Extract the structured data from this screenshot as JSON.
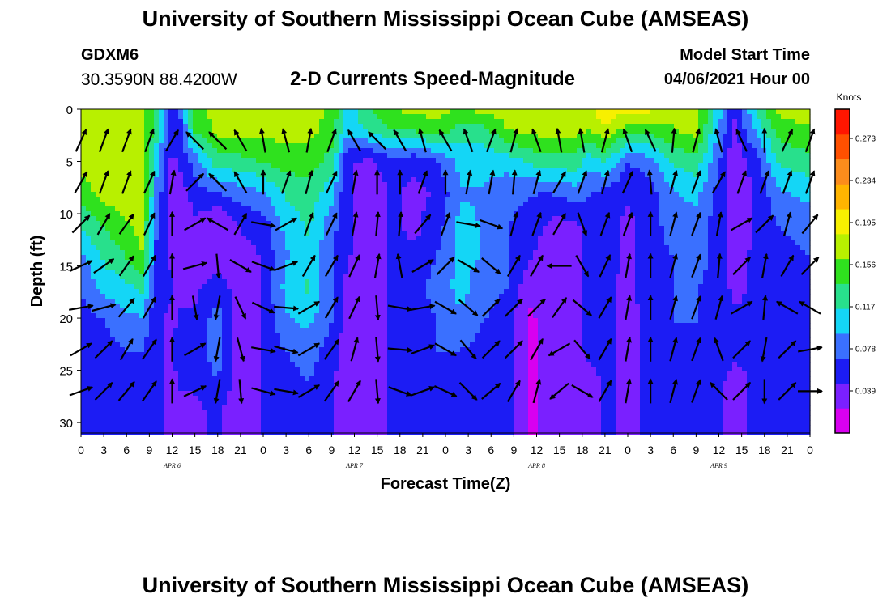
{
  "page": {
    "title_top": "University of Southern Mississippi Ocean Cube (AMSEAS)",
    "title_bottom": "University of Southern Mississippi Ocean Cube (AMSEAS)",
    "station_id": "GDXM6",
    "station_coords": "30.3590N  88.4200W",
    "subtitle": "2-D Currents Speed-Magnitude",
    "model_start_label": "Model Start Time",
    "model_start_value": "04/06/2021 Hour 00"
  },
  "chart_data": {
    "type": "heatmap",
    "title": "2-D Currents Speed-Magnitude",
    "xlabel": "Forecast Time(Z)",
    "ylabel": "Depth (ft)",
    "x_range_hours": [
      0,
      96
    ],
    "y_range_ft": [
      0,
      31
    ],
    "y_ticks": [
      0,
      5,
      10,
      15,
      20,
      25,
      30
    ],
    "x_tick_step_hours": 3,
    "x_tick_labels": [
      "0",
      "3",
      "6",
      "9",
      "12",
      "15",
      "18",
      "21",
      "0",
      "3",
      "6",
      "9",
      "12",
      "15",
      "18",
      "21",
      "0",
      "3",
      "6",
      "9",
      "12",
      "15",
      "18",
      "21",
      "0",
      "3",
      "6",
      "9",
      "12",
      "15",
      "18",
      "21",
      "0"
    ],
    "date_labels": [
      {
        "hour": 12,
        "text": "APR 6"
      },
      {
        "hour": 36,
        "text": "APR 7"
      },
      {
        "hour": 60,
        "text": "APR 8"
      },
      {
        "hour": 84,
        "text": "APR 9"
      }
    ],
    "colorbar": {
      "title": "Knots",
      "ticks": [
        0.039,
        0.078,
        0.117,
        0.156,
        0.195,
        0.234,
        0.273
      ],
      "range": [
        0,
        0.3
      ],
      "colors": [
        "#d800f0",
        "#7a20ff",
        "#1c1cf4",
        "#3a70ff",
        "#14d6f6",
        "#28e08c",
        "#2fe11e",
        "#b8f000",
        "#f7f000",
        "#ffb400",
        "#fb8c1c",
        "#ff5000",
        "#ff1600"
      ]
    },
    "speed_profiles": {
      "depths_ft": [
        0,
        2,
        5,
        8,
        11,
        14,
        17,
        20,
        23,
        26,
        29,
        31
      ],
      "columns": [
        {
          "hour": 0,
          "speeds": [
            0.16,
            0.17,
            0.17,
            0.15,
            0.12,
            0.09,
            0.07,
            0.06,
            0.05,
            0.05,
            0.05,
            0.05
          ]
        },
        {
          "hour": 3,
          "speeds": [
            0.17,
            0.18,
            0.18,
            0.17,
            0.14,
            0.12,
            0.1,
            0.07,
            0.06,
            0.05,
            0.05,
            0.05
          ]
        },
        {
          "hour": 6,
          "speeds": [
            0.17,
            0.18,
            0.18,
            0.18,
            0.16,
            0.14,
            0.11,
            0.09,
            0.07,
            0.06,
            0.06,
            0.06
          ]
        },
        {
          "hour": 8,
          "speeds": [
            0.17,
            0.18,
            0.18,
            0.18,
            0.17,
            0.16,
            0.12,
            0.09,
            0.07,
            0.06,
            0.06,
            0.06
          ]
        },
        {
          "hour": 10,
          "speeds": [
            0.13,
            0.12,
            0.1,
            0.08,
            0.07,
            0.06,
            0.06,
            0.05,
            0.05,
            0.05,
            0.05,
            0.05
          ]
        },
        {
          "hour": 12,
          "speeds": [
            0.06,
            0.05,
            0.04,
            0.04,
            0.04,
            0.04,
            0.05,
            0.04,
            0.04,
            0.04,
            0.04,
            0.04
          ]
        },
        {
          "hour": 13,
          "speeds": [
            0.07,
            0.06,
            0.05,
            0.03,
            0.03,
            0.03,
            0.04,
            0.05,
            0.06,
            0.05,
            0.04,
            0.03
          ]
        },
        {
          "hour": 15,
          "speeds": [
            0.15,
            0.14,
            0.08,
            0.06,
            0.04,
            0.03,
            0.04,
            0.05,
            0.06,
            0.05,
            0.04,
            0.04
          ]
        },
        {
          "hour": 18,
          "speeds": [
            0.17,
            0.17,
            0.13,
            0.07,
            0.02,
            0.03,
            0.06,
            0.08,
            0.08,
            0.07,
            0.05,
            0.05
          ]
        },
        {
          "hour": 21,
          "speeds": [
            0.17,
            0.17,
            0.13,
            0.08,
            0.05,
            0.03,
            0.03,
            0.03,
            0.03,
            0.03,
            0.03,
            0.03
          ]
        },
        {
          "hour": 24,
          "speeds": [
            0.17,
            0.17,
            0.14,
            0.09,
            0.06,
            0.05,
            0.05,
            0.05,
            0.05,
            0.05,
            0.05,
            0.05
          ]
        },
        {
          "hour": 27,
          "speeds": [
            0.17,
            0.17,
            0.15,
            0.12,
            0.1,
            0.09,
            0.1,
            0.09,
            0.07,
            0.06,
            0.06,
            0.06
          ]
        },
        {
          "hour": 30,
          "speeds": [
            0.17,
            0.17,
            0.15,
            0.13,
            0.12,
            0.11,
            0.12,
            0.1,
            0.08,
            0.07,
            0.06,
            0.06
          ]
        },
        {
          "hour": 33,
          "speeds": [
            0.16,
            0.15,
            0.13,
            0.1,
            0.08,
            0.07,
            0.07,
            0.07,
            0.06,
            0.05,
            0.05,
            0.05
          ]
        },
        {
          "hour": 35,
          "speeds": [
            0.1,
            0.1,
            0.05,
            0.05,
            0.05,
            0.05,
            0.04,
            0.04,
            0.03,
            0.03,
            0.03,
            0.03
          ]
        },
        {
          "hour": 38,
          "speeds": [
            0.14,
            0.12,
            0.04,
            0.03,
            0.03,
            0.03,
            0.03,
            0.03,
            0.03,
            0.03,
            0.03,
            0.03
          ]
        },
        {
          "hour": 41,
          "speeds": [
            0.16,
            0.14,
            0.06,
            0.05,
            0.05,
            0.05,
            0.05,
            0.05,
            0.05,
            0.05,
            0.05,
            0.05
          ]
        },
        {
          "hour": 44,
          "speeds": [
            0.17,
            0.14,
            0.05,
            0.04,
            0.04,
            0.05,
            0.06,
            0.06,
            0.06,
            0.06,
            0.06,
            0.06
          ]
        },
        {
          "hour": 47,
          "speeds": [
            0.17,
            0.15,
            0.07,
            0.05,
            0.06,
            0.07,
            0.08,
            0.07,
            0.07,
            0.06,
            0.06,
            0.06
          ]
        },
        {
          "hour": 50,
          "speeds": [
            0.16,
            0.13,
            0.1,
            0.09,
            0.1,
            0.1,
            0.1,
            0.09,
            0.07,
            0.06,
            0.06,
            0.06
          ]
        },
        {
          "hour": 53,
          "speeds": [
            0.17,
            0.13,
            0.1,
            0.09,
            0.09,
            0.09,
            0.08,
            0.07,
            0.06,
            0.06,
            0.06,
            0.06
          ]
        },
        {
          "hour": 56,
          "speeds": [
            0.17,
            0.16,
            0.1,
            0.08,
            0.07,
            0.07,
            0.07,
            0.06,
            0.06,
            0.06,
            0.06,
            0.06
          ]
        },
        {
          "hour": 59,
          "speeds": [
            0.17,
            0.17,
            0.12,
            0.07,
            0.06,
            0.05,
            0.03,
            0.02,
            0.02,
            0.02,
            0.02,
            0.02
          ]
        },
        {
          "hour": 62,
          "speeds": [
            0.18,
            0.17,
            0.13,
            0.07,
            0.04,
            0.03,
            0.03,
            0.03,
            0.03,
            0.03,
            0.03,
            0.03
          ]
        },
        {
          "hour": 65,
          "speeds": [
            0.18,
            0.17,
            0.13,
            0.08,
            0.04,
            0.03,
            0.04,
            0.04,
            0.04,
            0.04,
            0.04,
            0.04
          ]
        },
        {
          "hour": 67,
          "speeds": [
            0.18,
            0.16,
            0.1,
            0.07,
            0.06,
            0.06,
            0.06,
            0.05,
            0.05,
            0.04,
            0.04,
            0.04
          ]
        },
        {
          "hour": 69,
          "speeds": [
            0.2,
            0.18,
            0.12,
            0.06,
            0.06,
            0.06,
            0.05,
            0.05,
            0.05,
            0.05,
            0.05,
            0.05
          ]
        },
        {
          "hour": 72,
          "speeds": [
            0.19,
            0.15,
            0.07,
            0.05,
            0.04,
            0.04,
            0.04,
            0.04,
            0.04,
            0.04,
            0.04,
            0.04
          ]
        },
        {
          "hour": 75,
          "speeds": [
            0.19,
            0.15,
            0.08,
            0.06,
            0.06,
            0.06,
            0.06,
            0.05,
            0.05,
            0.05,
            0.05,
            0.05
          ]
        },
        {
          "hour": 78,
          "speeds": [
            0.17,
            0.16,
            0.12,
            0.09,
            0.08,
            0.07,
            0.07,
            0.07,
            0.06,
            0.06,
            0.06,
            0.06
          ]
        },
        {
          "hour": 81,
          "speeds": [
            0.17,
            0.17,
            0.13,
            0.1,
            0.08,
            0.08,
            0.07,
            0.07,
            0.06,
            0.06,
            0.06,
            0.06
          ]
        },
        {
          "hour": 84,
          "speeds": [
            0.1,
            0.09,
            0.07,
            0.06,
            0.06,
            0.06,
            0.06,
            0.06,
            0.06,
            0.05,
            0.05,
            0.05
          ]
        },
        {
          "hour": 86,
          "speeds": [
            0.05,
            0.04,
            0.03,
            0.03,
            0.03,
            0.04,
            0.04,
            0.05,
            0.05,
            0.04,
            0.04,
            0.04
          ]
        },
        {
          "hour": 89,
          "speeds": [
            0.12,
            0.1,
            0.06,
            0.05,
            0.05,
            0.05,
            0.05,
            0.05,
            0.05,
            0.05,
            0.05,
            0.05
          ]
        },
        {
          "hour": 92,
          "speeds": [
            0.17,
            0.15,
            0.12,
            0.09,
            0.07,
            0.06,
            0.06,
            0.06,
            0.06,
            0.06,
            0.06,
            0.06
          ]
        },
        {
          "hour": 96,
          "speeds": [
            0.17,
            0.16,
            0.13,
            0.1,
            0.08,
            0.07,
            0.07,
            0.06,
            0.06,
            0.06,
            0.06,
            0.06
          ]
        }
      ]
    },
    "vector_depths_ft": [
      3,
      7,
      11,
      15,
      19,
      23,
      27
    ],
    "vectors_deg": [
      {
        "hour": 0,
        "directions": [
          25,
          30,
          45,
          65,
          80,
          60,
          70
        ]
      },
      {
        "hour": 3,
        "directions": [
          20,
          20,
          30,
          55,
          75,
          45,
          45
        ]
      },
      {
        "hour": 6,
        "directions": [
          20,
          20,
          35,
          35,
          40,
          30,
          40
        ]
      },
      {
        "hour": 9,
        "directions": [
          20,
          25,
          25,
          30,
          30,
          35,
          35
        ]
      },
      {
        "hour": 12,
        "directions": [
          30,
          10,
          0,
          0,
          0,
          0,
          0
        ]
      },
      {
        "hour": 15,
        "directions": [
          315,
          45,
          60,
          75,
          170,
          60,
          65
        ]
      },
      {
        "hour": 18,
        "directions": [
          315,
          315,
          300,
          175,
          190,
          190,
          190
        ]
      },
      {
        "hour": 21,
        "directions": [
          330,
          330,
          30,
          120,
          155,
          165,
          175
        ]
      },
      {
        "hour": 24,
        "directions": [
          350,
          0,
          100,
          110,
          115,
          100,
          105
        ]
      },
      {
        "hour": 27,
        "directions": [
          345,
          20,
          60,
          70,
          95,
          105,
          100
        ]
      },
      {
        "hour": 30,
        "directions": [
          10,
          15,
          20,
          30,
          60,
          60,
          60
        ]
      },
      {
        "hour": 33,
        "directions": [
          20,
          25,
          25,
          30,
          30,
          35,
          35
        ]
      },
      {
        "hour": 36,
        "directions": [
          330,
          10,
          10,
          25,
          25,
          15,
          30
        ]
      },
      {
        "hour": 39,
        "directions": [
          315,
          0,
          5,
          10,
          175,
          175,
          175
        ]
      },
      {
        "hour": 42,
        "directions": [
          330,
          0,
          5,
          350,
          100,
          95,
          110
        ]
      },
      {
        "hour": 45,
        "directions": [
          345,
          20,
          40,
          60,
          80,
          70,
          70
        ]
      },
      {
        "hour": 48,
        "directions": [
          330,
          0,
          20,
          45,
          120,
          120,
          115
        ]
      },
      {
        "hour": 51,
        "directions": [
          340,
          10,
          100,
          120,
          130,
          140,
          135
        ]
      },
      {
        "hour": 54,
        "directions": [
          20,
          10,
          110,
          130,
          45,
          45,
          50
        ]
      },
      {
        "hour": 57,
        "directions": [
          15,
          5,
          15,
          30,
          45,
          45,
          30
        ]
      },
      {
        "hour": 60,
        "directions": [
          340,
          15,
          20,
          30,
          45,
          30,
          15
        ]
      },
      {
        "hour": 63,
        "directions": [
          350,
          30,
          30,
          270,
          35,
          240,
          230
        ]
      },
      {
        "hour": 66,
        "directions": [
          350,
          20,
          160,
          150,
          130,
          140,
          120
        ]
      },
      {
        "hour": 69,
        "directions": [
          15,
          15,
          20,
          25,
          30,
          30,
          30
        ]
      },
      {
        "hour": 72,
        "directions": [
          340,
          25,
          20,
          10,
          10,
          10,
          10
        ]
      },
      {
        "hour": 75,
        "directions": [
          335,
          355,
          0,
          0,
          0,
          0,
          0
        ]
      },
      {
        "hour": 78,
        "directions": [
          5,
          15,
          15,
          15,
          15,
          15,
          15
        ]
      },
      {
        "hour": 81,
        "directions": [
          15,
          20,
          20,
          20,
          20,
          20,
          20
        ]
      },
      {
        "hour": 84,
        "directions": [
          345,
          30,
          10,
          5,
          15,
          340,
          315
        ]
      },
      {
        "hour": 87,
        "directions": [
          335,
          20,
          60,
          45,
          60,
          45,
          45
        ]
      },
      {
        "hour": 90,
        "directions": [
          0,
          20,
          45,
          10,
          5,
          190,
          180
        ]
      },
      {
        "hour": 93,
        "directions": [
          25,
          20,
          15,
          30,
          300,
          45,
          45
        ]
      },
      {
        "hour": 96,
        "directions": [
          20,
          20,
          40,
          45,
          300,
          80,
          90
        ]
      }
    ]
  }
}
